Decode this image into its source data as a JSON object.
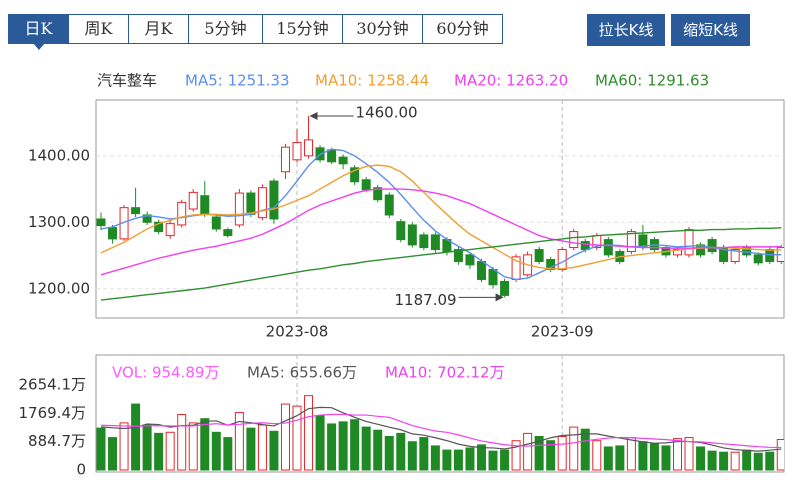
{
  "tabs": [
    "日K",
    "周K",
    "月K",
    "5分钟",
    "15分钟",
    "30分钟",
    "60分钟"
  ],
  "buttons": [
    "拉长K线",
    "缩短K线"
  ],
  "chart_data": [
    {
      "type": "candlestick",
      "title": "汽车整车",
      "categories": [
        null,
        null,
        null,
        null,
        null,
        null,
        null,
        null,
        null,
        null,
        null,
        null,
        null,
        null,
        null,
        null,
        null,
        "2023-08",
        null,
        null,
        null,
        null,
        null,
        null,
        null,
        null,
        null,
        null,
        null,
        null,
        null,
        null,
        null,
        null,
        null,
        null,
        null,
        null,
        null,
        null,
        "2023-09",
        null,
        null,
        null,
        null,
        null,
        null,
        null,
        null,
        null,
        null,
        null,
        null,
        null,
        null,
        null,
        null,
        null,
        null,
        null
      ],
      "open": [
        1305,
        1292,
        1275,
        1322,
        1311,
        1300,
        1280,
        1296,
        1320,
        1340,
        1308,
        1289,
        1296,
        1344,
        1307,
        1362,
        1376,
        1394,
        1400,
        1412,
        1409,
        1398,
        1382,
        1364,
        1352,
        1341,
        1301,
        1296,
        1281,
        1281,
        1274,
        1259,
        1251,
        1241,
        1229,
        1211,
        1214,
        1221,
        1259,
        1244,
        1229,
        1262,
        1271,
        1262,
        1274,
        1256,
        1256,
        1281,
        1274,
        1262,
        1251,
        1251,
        1266,
        1274,
        1262,
        1241,
        1262,
        1251,
        1259,
        1241
      ],
      "high": [
        1315,
        1296,
        1326,
        1352,
        1316,
        1304,
        1302,
        1334,
        1350,
        1362,
        1312,
        1292,
        1350,
        1348,
        1357,
        1366,
        1418,
        1440,
        1460,
        1416,
        1412,
        1402,
        1386,
        1368,
        1356,
        1345,
        1305,
        1300,
        1285,
        1285,
        1278,
        1263,
        1255,
        1245,
        1233,
        1215,
        1252,
        1256,
        1263,
        1248,
        1263,
        1290,
        1275,
        1284,
        1278,
        1260,
        1290,
        1296,
        1278,
        1266,
        1263,
        1293,
        1270,
        1278,
        1266,
        1263,
        1266,
        1255,
        1263,
        1266
      ],
      "low": [
        1288,
        1268,
        1272,
        1308,
        1296,
        1282,
        1275,
        1292,
        1316,
        1308,
        1286,
        1277,
        1292,
        1308,
        1303,
        1298,
        1365,
        1390,
        1396,
        1390,
        1388,
        1380,
        1356,
        1345,
        1330,
        1306,
        1270,
        1262,
        1258,
        1254,
        1250,
        1236,
        1230,
        1210,
        1200,
        1187.09,
        1210,
        1218,
        1237,
        1225,
        1226,
        1258,
        1255,
        1258,
        1247,
        1237,
        1252,
        1258,
        1255,
        1247,
        1247,
        1247,
        1247,
        1252,
        1237,
        1237,
        1247,
        1235,
        1237,
        1237
      ],
      "close": [
        1295,
        1275,
        1322,
        1313,
        1300,
        1286,
        1298,
        1330,
        1345,
        1312,
        1290,
        1280,
        1344,
        1312,
        1352,
        1305,
        1413,
        1420,
        1424,
        1394,
        1391,
        1388,
        1361,
        1349,
        1334,
        1311,
        1274,
        1266,
        1262,
        1259,
        1256,
        1241,
        1236,
        1214,
        1206,
        1190,
        1248,
        1251,
        1241,
        1229,
        1259,
        1286,
        1259,
        1280,
        1251,
        1241,
        1286,
        1262,
        1259,
        1251,
        1259,
        1289,
        1251,
        1256,
        1241,
        1259,
        1251,
        1239,
        1241,
        1262
      ],
      "up_color": "#e5262b",
      "down_color": "#1f8a24",
      "series": [
        {
          "name": "MA5: 1251.33",
          "color": "#5b8ef0",
          "values": [
            1290,
            1293,
            1300,
            1306,
            1310,
            1308,
            1305,
            1307,
            1310,
            1312,
            1311,
            1309,
            1310,
            1312,
            1318,
            1322,
            1340,
            1362,
            1385,
            1402,
            1410,
            1408,
            1400,
            1388,
            1375,
            1360,
            1342,
            1322,
            1303,
            1287,
            1274,
            1264,
            1254,
            1242,
            1230,
            1218,
            1214,
            1216,
            1224,
            1232,
            1240,
            1250,
            1258,
            1264,
            1266,
            1265,
            1263,
            1264,
            1266,
            1265,
            1263,
            1264,
            1265,
            1262,
            1259,
            1257,
            1255,
            1253,
            1251,
            1251.33
          ]
        },
        {
          "name": "MA10: 1258.44",
          "color": "#f0a030",
          "values": [
            1254,
            1262,
            1270,
            1280,
            1290,
            1298,
            1303,
            1308,
            1311,
            1312,
            1312,
            1311,
            1312,
            1314,
            1317,
            1320,
            1326,
            1333,
            1340,
            1350,
            1360,
            1370,
            1378,
            1384,
            1386,
            1384,
            1376,
            1362,
            1345,
            1328,
            1312,
            1296,
            1282,
            1272,
            1262,
            1252,
            1242,
            1236,
            1232,
            1230,
            1230,
            1232,
            1236,
            1240,
            1244,
            1248,
            1250,
            1252,
            1254,
            1256,
            1258,
            1260,
            1261,
            1262,
            1262,
            1261,
            1260,
            1259,
            1258,
            1258.44
          ]
        },
        {
          "name": "MA20: 1263.20",
          "color": "#f040f0",
          "values": [
            1221,
            1226,
            1231,
            1236,
            1241,
            1246,
            1250,
            1254,
            1258,
            1261,
            1264,
            1268,
            1272,
            1276,
            1282,
            1290,
            1298,
            1308,
            1318,
            1326,
            1332,
            1338,
            1344,
            1348,
            1350,
            1350,
            1350,
            1349,
            1347,
            1344,
            1340,
            1334,
            1328,
            1320,
            1312,
            1304,
            1296,
            1288,
            1280,
            1275,
            1272,
            1269,
            1267,
            1266,
            1265,
            1264,
            1263,
            1262,
            1262,
            1261,
            1261,
            1261,
            1262,
            1262,
            1262,
            1263,
            1263,
            1263,
            1263,
            1263.2
          ]
        },
        {
          "name": "MA60: 1291.63",
          "color": "#2f8f2f",
          "values": [
            1183,
            1185,
            1187,
            1189,
            1191,
            1193,
            1195,
            1197,
            1199,
            1201,
            1204,
            1207,
            1210,
            1213,
            1216,
            1219,
            1222,
            1225,
            1228,
            1230,
            1233,
            1236,
            1238,
            1241,
            1243,
            1245,
            1247,
            1249,
            1251,
            1253,
            1255,
            1257,
            1259,
            1261,
            1263,
            1265,
            1267,
            1269,
            1271,
            1273,
            1275,
            1277,
            1278,
            1280,
            1281,
            1282,
            1283,
            1284,
            1285,
            1286,
            1287,
            1288,
            1288,
            1289,
            1289,
            1290,
            1290,
            1291,
            1291,
            1291.63
          ]
        }
      ],
      "ylim": [
        1156,
        1484
      ],
      "yticks": [
        {
          "value": 1200,
          "label": "1200.00"
        },
        {
          "value": 1300,
          "label": "1300.00"
        },
        {
          "value": 1400,
          "label": "1400.00"
        }
      ],
      "annotations": [
        {
          "value": 1460,
          "label": "1460.00"
        },
        {
          "value": 1187.09,
          "label": "1187.09"
        }
      ],
      "grid": true
    },
    {
      "type": "bar",
      "series": [
        {
          "name": "VOL: 954.89万",
          "color": "#ff5cff",
          "values": [
            1310,
            1015,
            1475,
            2064,
            1409,
            1147,
            1180,
            1737,
            1475,
            1606,
            1180,
            1015,
            1802,
            1310,
            1409,
            1212,
            2064,
            1999,
            2327,
            1704,
            1442,
            1507,
            1573,
            1343,
            1245,
            1049,
            1147,
            885,
            1015,
            754,
            623,
            623,
            688,
            786,
            590,
            623,
            917,
            1147,
            1049,
            917,
            1049,
            1343,
            1278,
            917,
            721,
            754,
            1015,
            885,
            819,
            754,
            983,
            1015,
            721,
            590,
            557,
            557,
            623,
            524,
            557,
            954.89
          ]
        },
        {
          "name": "MA5: 655.66万",
          "color": "#555555",
          "values": [
            1350,
            1320,
            1300,
            1330,
            1440,
            1420,
            1340,
            1390,
            1400,
            1520,
            1540,
            1400,
            1520,
            1480,
            1420,
            1380,
            1540,
            1700,
            1920,
            1960,
            1950,
            1790,
            1650,
            1520,
            1430,
            1340,
            1260,
            1130,
            1090,
            1010,
            920,
            810,
            740,
            700,
            690,
            660,
            720,
            810,
            900,
            1010,
            1080,
            1100,
            1130,
            1130,
            1060,
            1000,
            940,
            880,
            840,
            850,
            890,
            890,
            860,
            780,
            690,
            640,
            610,
            590,
            620,
            655.66
          ]
        },
        {
          "name": "MA10: 702.12万",
          "color": "#f040f0",
          "values": [
            1400,
            1390,
            1380,
            1370,
            1380,
            1390,
            1380,
            1380,
            1380,
            1420,
            1450,
            1410,
            1430,
            1460,
            1480,
            1450,
            1470,
            1560,
            1670,
            1720,
            1740,
            1740,
            1720,
            1720,
            1680,
            1650,
            1520,
            1390,
            1300,
            1220,
            1180,
            1100,
            1000,
            910,
            850,
            790,
            760,
            750,
            770,
            790,
            810,
            850,
            910,
            960,
            1000,
            1020,
            1010,
            990,
            970,
            950,
            920,
            890,
            880,
            850,
            820,
            790,
            760,
            730,
            710,
            702.12
          ]
        }
      ],
      "ylim": [
        0,
        3600
      ],
      "yticks": [
        0,
        {
          "value": 884.7,
          "label": "884.7万"
        },
        {
          "value": 1769.4,
          "label": "1769.4万"
        },
        {
          "value": 2654.1,
          "label": "2654.1万"
        }
      ]
    }
  ]
}
